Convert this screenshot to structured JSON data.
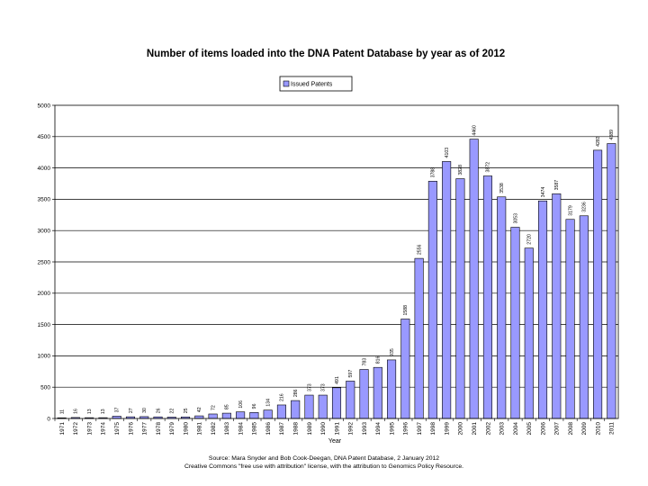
{
  "chart_data": {
    "type": "bar",
    "title": "Number of items loaded into the DNA Patent Database by year as of 2012",
    "xlabel": "Year",
    "ylabel": "",
    "legend": {
      "label": "Issued Patents",
      "position": "top-center"
    },
    "categories": [
      "1971",
      "1972",
      "1973",
      "1974",
      "1975",
      "1976",
      "1977",
      "1978",
      "1979",
      "1980",
      "1981",
      "1982",
      "1983",
      "1984",
      "1985",
      "1986",
      "1987",
      "1988",
      "1989",
      "1990",
      "1991",
      "1992",
      "1993",
      "1994",
      "1995",
      "1996",
      "1997",
      "1998",
      "1999",
      "2000",
      "2001",
      "2002",
      "2003",
      "2004",
      "2005",
      "2006",
      "2007",
      "2008",
      "2009",
      "2010",
      "2011"
    ],
    "values": [
      11,
      16,
      13,
      13,
      37,
      27,
      30,
      26,
      22,
      25,
      42,
      72,
      85,
      106,
      96,
      134,
      216,
      286,
      373,
      373,
      491,
      597,
      783,
      816,
      935,
      1588,
      2556,
      3788,
      4103,
      3828,
      4460,
      3872,
      3538,
      3053,
      2720,
      3474,
      3587,
      3179,
      3236,
      4283,
      4389
    ],
    "value_labels": [
      "11",
      "16",
      "13",
      "13",
      "37",
      "27",
      "30",
      "26",
      "22",
      "25",
      "42",
      "72",
      "85",
      "106",
      "96",
      "134",
      "216",
      "286",
      "373",
      "373",
      "491",
      "597",
      "783",
      "816",
      "935",
      "1588",
      "2556",
      "3788",
      "4103",
      "3828",
      "4460",
      "3872",
      "3538",
      "3053",
      "2720",
      "3474",
      "3587",
      "3179",
      "3236",
      "4283",
      "4389"
    ],
    "ylim": [
      0,
      5000
    ],
    "yticks": [
      0,
      500,
      1000,
      1500,
      2000,
      2500,
      3000,
      3500,
      4000,
      4500,
      5000
    ],
    "grid": "horizontal",
    "colors": {
      "bar_fill": "#9999ff",
      "bar_stroke": "#000000",
      "grid": "#000000"
    }
  },
  "source": {
    "line1": "Source: Mara Snyder and Bob Cook-Deegan, DNA Patent Database, 2 January 2012",
    "line2": "Creative Commons \"free use with attribution\" license, with the attribution to Genomics Policy Resource."
  }
}
